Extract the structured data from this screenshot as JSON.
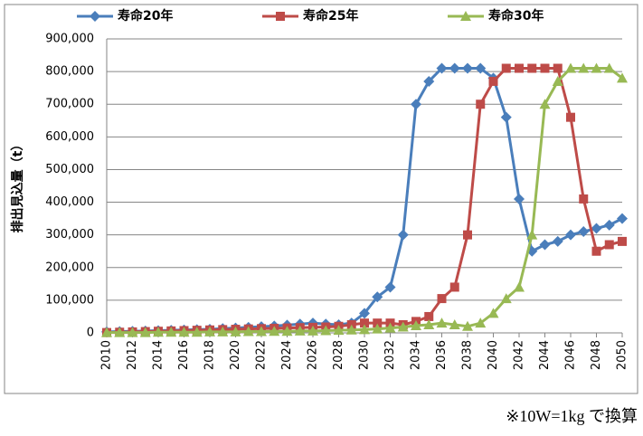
{
  "chart_data": {
    "type": "line",
    "y_label": "排出見込量（t）",
    "annotation": "※10W=1kg で換算",
    "x": [
      2010,
      2011,
      2012,
      2013,
      2014,
      2015,
      2016,
      2017,
      2018,
      2019,
      2020,
      2021,
      2022,
      2023,
      2024,
      2025,
      2026,
      2027,
      2028,
      2029,
      2030,
      2031,
      2032,
      2033,
      2034,
      2035,
      2036,
      2037,
      2038,
      2039,
      2040,
      2041,
      2042,
      2043,
      2044,
      2045,
      2046,
      2047,
      2048,
      2049,
      2050
    ],
    "xlim": [
      2010,
      2050
    ],
    "xticks": [
      2010,
      2012,
      2014,
      2016,
      2018,
      2020,
      2022,
      2024,
      2026,
      2028,
      2030,
      2032,
      2034,
      2036,
      2038,
      2040,
      2042,
      2044,
      2046,
      2048,
      2050
    ],
    "ylim": [
      0,
      900000
    ],
    "yticks": [
      0,
      {
        "value": 100000,
        "label": "100,000"
      },
      {
        "value": 200000,
        "label": "200,000"
      },
      {
        "value": 300000,
        "label": "300,000"
      },
      {
        "value": 400000,
        "label": "400,000"
      },
      {
        "value": 500000,
        "label": "500,000"
      },
      {
        "value": 600000,
        "label": "600,000"
      },
      {
        "value": 700000,
        "label": "700,000"
      },
      {
        "value": 800000,
        "label": "800,000"
      },
      {
        "value": 900000,
        "label": "900,000"
      }
    ],
    "grid": true,
    "legend": "top",
    "series": [
      {
        "name": "寿命20年",
        "color": "#4a7ebb",
        "marker": "diamond",
        "values": [
          3000,
          4000,
          5000,
          6000,
          7000,
          8000,
          9000,
          10000,
          11000,
          13000,
          15000,
          17000,
          19000,
          21000,
          24000,
          27000,
          30000,
          27000,
          25000,
          30000,
          60000,
          110000,
          140000,
          300000,
          700000,
          770000,
          810000,
          810000,
          810000,
          810000,
          780000,
          660000,
          410000,
          250000,
          270000,
          280000,
          300000,
          310000,
          320000,
          330000,
          350000
        ]
      },
      {
        "name": "寿命25年",
        "color": "#be4b48",
        "marker": "square",
        "values": [
          1000,
          2000,
          3000,
          4000,
          5000,
          6000,
          7000,
          8000,
          9000,
          10000,
          11000,
          12000,
          13000,
          14000,
          15000,
          16000,
          17000,
          18000,
          20000,
          25000,
          30000,
          30000,
          30000,
          25000,
          35000,
          50000,
          105000,
          140000,
          300000,
          700000,
          770000,
          810000,
          810000,
          810000,
          810000,
          810000,
          660000,
          410000,
          250000,
          270000,
          280000
        ]
      },
      {
        "name": "寿命30年",
        "color": "#98b954",
        "marker": "triangle",
        "values": [
          1000,
          1000,
          1000,
          1000,
          2000,
          2000,
          2000,
          2000,
          3000,
          3000,
          3000,
          4000,
          4000,
          5000,
          5000,
          6000,
          6000,
          7000,
          8000,
          9000,
          10000,
          12000,
          15000,
          18000,
          22000,
          25000,
          30000,
          25000,
          20000,
          30000,
          60000,
          105000,
          140000,
          300000,
          700000,
          770000,
          810000,
          810000,
          810000,
          810000,
          780000
        ]
      }
    ]
  }
}
